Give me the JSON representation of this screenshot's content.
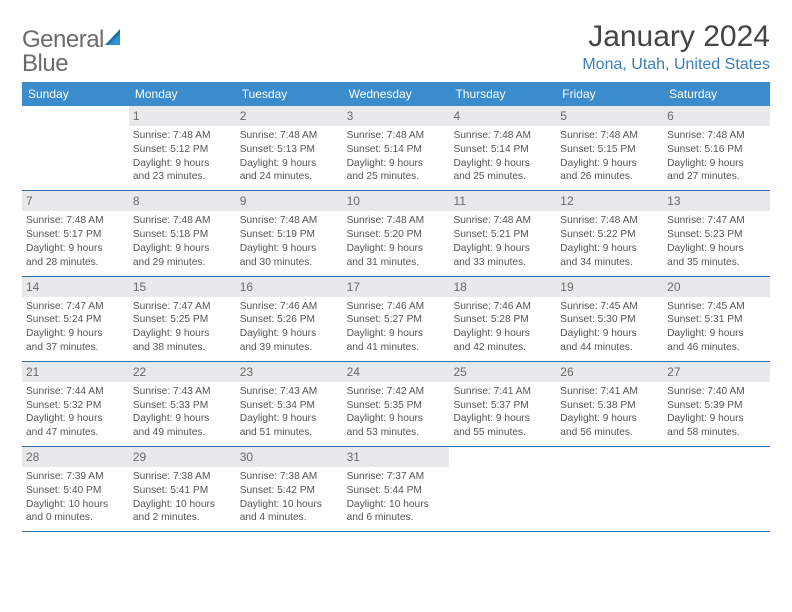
{
  "logo": {
    "word1": "General",
    "word2": "Blue"
  },
  "title": "January 2024",
  "location": "Mona, Utah, United States",
  "colors": {
    "header_bg": "#3b8ccc",
    "header_text": "#ffffff",
    "week_border": "#2f6ea8",
    "daynum_bg": "#e7e9ea",
    "daynum_text": "#6a6a6a",
    "location_text": "#3b7fb8",
    "body_text": "#555555",
    "logo_gray": "#6b6b6b",
    "logo_icon": "#1f6fb0"
  },
  "dayNames": [
    "Sunday",
    "Monday",
    "Tuesday",
    "Wednesday",
    "Thursday",
    "Friday",
    "Saturday"
  ],
  "weeks": [
    [
      {
        "empty": true
      },
      {
        "num": "1",
        "sunrise": "Sunrise: 7:48 AM",
        "sunset": "Sunset: 5:12 PM",
        "day1": "Daylight: 9 hours",
        "day2": "and 23 minutes."
      },
      {
        "num": "2",
        "sunrise": "Sunrise: 7:48 AM",
        "sunset": "Sunset: 5:13 PM",
        "day1": "Daylight: 9 hours",
        "day2": "and 24 minutes."
      },
      {
        "num": "3",
        "sunrise": "Sunrise: 7:48 AM",
        "sunset": "Sunset: 5:14 PM",
        "day1": "Daylight: 9 hours",
        "day2": "and 25 minutes."
      },
      {
        "num": "4",
        "sunrise": "Sunrise: 7:48 AM",
        "sunset": "Sunset: 5:14 PM",
        "day1": "Daylight: 9 hours",
        "day2": "and 25 minutes."
      },
      {
        "num": "5",
        "sunrise": "Sunrise: 7:48 AM",
        "sunset": "Sunset: 5:15 PM",
        "day1": "Daylight: 9 hours",
        "day2": "and 26 minutes."
      },
      {
        "num": "6",
        "sunrise": "Sunrise: 7:48 AM",
        "sunset": "Sunset: 5:16 PM",
        "day1": "Daylight: 9 hours",
        "day2": "and 27 minutes."
      }
    ],
    [
      {
        "num": "7",
        "sunrise": "Sunrise: 7:48 AM",
        "sunset": "Sunset: 5:17 PM",
        "day1": "Daylight: 9 hours",
        "day2": "and 28 minutes."
      },
      {
        "num": "8",
        "sunrise": "Sunrise: 7:48 AM",
        "sunset": "Sunset: 5:18 PM",
        "day1": "Daylight: 9 hours",
        "day2": "and 29 minutes."
      },
      {
        "num": "9",
        "sunrise": "Sunrise: 7:48 AM",
        "sunset": "Sunset: 5:19 PM",
        "day1": "Daylight: 9 hours",
        "day2": "and 30 minutes."
      },
      {
        "num": "10",
        "sunrise": "Sunrise: 7:48 AM",
        "sunset": "Sunset: 5:20 PM",
        "day1": "Daylight: 9 hours",
        "day2": "and 31 minutes."
      },
      {
        "num": "11",
        "sunrise": "Sunrise: 7:48 AM",
        "sunset": "Sunset: 5:21 PM",
        "day1": "Daylight: 9 hours",
        "day2": "and 33 minutes."
      },
      {
        "num": "12",
        "sunrise": "Sunrise: 7:48 AM",
        "sunset": "Sunset: 5:22 PM",
        "day1": "Daylight: 9 hours",
        "day2": "and 34 minutes."
      },
      {
        "num": "13",
        "sunrise": "Sunrise: 7:47 AM",
        "sunset": "Sunset: 5:23 PM",
        "day1": "Daylight: 9 hours",
        "day2": "and 35 minutes."
      }
    ],
    [
      {
        "num": "14",
        "sunrise": "Sunrise: 7:47 AM",
        "sunset": "Sunset: 5:24 PM",
        "day1": "Daylight: 9 hours",
        "day2": "and 37 minutes."
      },
      {
        "num": "15",
        "sunrise": "Sunrise: 7:47 AM",
        "sunset": "Sunset: 5:25 PM",
        "day1": "Daylight: 9 hours",
        "day2": "and 38 minutes."
      },
      {
        "num": "16",
        "sunrise": "Sunrise: 7:46 AM",
        "sunset": "Sunset: 5:26 PM",
        "day1": "Daylight: 9 hours",
        "day2": "and 39 minutes."
      },
      {
        "num": "17",
        "sunrise": "Sunrise: 7:46 AM",
        "sunset": "Sunset: 5:27 PM",
        "day1": "Daylight: 9 hours",
        "day2": "and 41 minutes."
      },
      {
        "num": "18",
        "sunrise": "Sunrise: 7:46 AM",
        "sunset": "Sunset: 5:28 PM",
        "day1": "Daylight: 9 hours",
        "day2": "and 42 minutes."
      },
      {
        "num": "19",
        "sunrise": "Sunrise: 7:45 AM",
        "sunset": "Sunset: 5:30 PM",
        "day1": "Daylight: 9 hours",
        "day2": "and 44 minutes."
      },
      {
        "num": "20",
        "sunrise": "Sunrise: 7:45 AM",
        "sunset": "Sunset: 5:31 PM",
        "day1": "Daylight: 9 hours",
        "day2": "and 46 minutes."
      }
    ],
    [
      {
        "num": "21",
        "sunrise": "Sunrise: 7:44 AM",
        "sunset": "Sunset: 5:32 PM",
        "day1": "Daylight: 9 hours",
        "day2": "and 47 minutes."
      },
      {
        "num": "22",
        "sunrise": "Sunrise: 7:43 AM",
        "sunset": "Sunset: 5:33 PM",
        "day1": "Daylight: 9 hours",
        "day2": "and 49 minutes."
      },
      {
        "num": "23",
        "sunrise": "Sunrise: 7:43 AM",
        "sunset": "Sunset: 5:34 PM",
        "day1": "Daylight: 9 hours",
        "day2": "and 51 minutes."
      },
      {
        "num": "24",
        "sunrise": "Sunrise: 7:42 AM",
        "sunset": "Sunset: 5:35 PM",
        "day1": "Daylight: 9 hours",
        "day2": "and 53 minutes."
      },
      {
        "num": "25",
        "sunrise": "Sunrise: 7:41 AM",
        "sunset": "Sunset: 5:37 PM",
        "day1": "Daylight: 9 hours",
        "day2": "and 55 minutes."
      },
      {
        "num": "26",
        "sunrise": "Sunrise: 7:41 AM",
        "sunset": "Sunset: 5:38 PM",
        "day1": "Daylight: 9 hours",
        "day2": "and 56 minutes."
      },
      {
        "num": "27",
        "sunrise": "Sunrise: 7:40 AM",
        "sunset": "Sunset: 5:39 PM",
        "day1": "Daylight: 9 hours",
        "day2": "and 58 minutes."
      }
    ],
    [
      {
        "num": "28",
        "sunrise": "Sunrise: 7:39 AM",
        "sunset": "Sunset: 5:40 PM",
        "day1": "Daylight: 10 hours",
        "day2": "and 0 minutes."
      },
      {
        "num": "29",
        "sunrise": "Sunrise: 7:38 AM",
        "sunset": "Sunset: 5:41 PM",
        "day1": "Daylight: 10 hours",
        "day2": "and 2 minutes."
      },
      {
        "num": "30",
        "sunrise": "Sunrise: 7:38 AM",
        "sunset": "Sunset: 5:42 PM",
        "day1": "Daylight: 10 hours",
        "day2": "and 4 minutes."
      },
      {
        "num": "31",
        "sunrise": "Sunrise: 7:37 AM",
        "sunset": "Sunset: 5:44 PM",
        "day1": "Daylight: 10 hours",
        "day2": "and 6 minutes."
      },
      {
        "empty": true
      },
      {
        "empty": true
      },
      {
        "empty": true
      }
    ]
  ]
}
